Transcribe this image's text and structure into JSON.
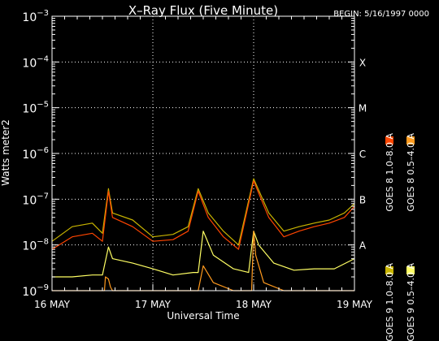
{
  "chart_data": {
    "type": "line",
    "title": "X–Ray Flux (Five Minute)",
    "begin_label": "BEGIN: 5/16/1997 0000",
    "ylabel": "Watts meter2",
    "xlabel": "Universal Time",
    "x_ticks": [
      "16 MAY",
      "17 MAY",
      "18 MAY",
      "19 MAY"
    ],
    "x_range_days": [
      0,
      3
    ],
    "y_scale": "log",
    "ylim": [
      1e-09,
      0.001
    ],
    "y_ticks": [
      {
        "base": "10",
        "exp": "−3",
        "value": 0.001
      },
      {
        "base": "10",
        "exp": "−4",
        "value": 0.0001
      },
      {
        "base": "10",
        "exp": "−5",
        "value": 1e-05
      },
      {
        "base": "10",
        "exp": "−6",
        "value": 1e-06
      },
      {
        "base": "10",
        "exp": "−7",
        "value": 1e-07
      },
      {
        "base": "10",
        "exp": "−8",
        "value": 1e-08
      },
      {
        "base": "10",
        "exp": "−9",
        "value": 1e-09
      }
    ],
    "flare_classes": [
      {
        "label": "X",
        "value": 0.0001
      },
      {
        "label": "M",
        "value": 1e-05
      },
      {
        "label": "C",
        "value": 1e-06
      },
      {
        "label": "B",
        "value": 1e-07
      },
      {
        "label": "A",
        "value": 1e-08
      }
    ],
    "grid": true,
    "legend_placement": "right, vertical text",
    "series": [
      {
        "name": "GOES 8  1.0–8.0 A",
        "color": "#ff4500",
        "x": [
          0,
          0.2,
          0.4,
          0.5,
          0.56,
          0.6,
          0.8,
          1.0,
          1.2,
          1.35,
          1.45,
          1.55,
          1.7,
          1.85,
          2.0,
          2.15,
          2.3,
          2.45,
          2.6,
          2.75,
          2.9,
          3.0
        ],
        "y": [
          8e-09,
          1.5e-08,
          1.8e-08,
          1.2e-08,
          1.5e-07,
          4e-08,
          2.5e-08,
          1.2e-08,
          1.3e-08,
          2e-08,
          1.5e-07,
          4e-08,
          1.5e-08,
          8e-09,
          2.5e-07,
          4e-08,
          1.5e-08,
          2e-08,
          2.5e-08,
          3e-08,
          4e-08,
          7e-08
        ]
      },
      {
        "name": "GOES 8  0.5–4.0 A",
        "color": "#ff9a1e",
        "x": [
          0,
          0.2,
          0.4,
          0.5,
          0.52,
          0.53,
          0.56,
          0.58,
          0.6,
          0.8,
          1.0,
          1.2,
          1.4,
          1.45,
          1.5,
          1.6,
          1.8,
          1.95,
          1.98,
          2.0,
          2.02,
          2.1,
          2.3,
          2.45,
          2.6,
          2.9,
          3.0
        ],
        "y": [
          1e-09,
          1e-09,
          1e-09,
          1e-09,
          1e-09,
          2e-09,
          1.8e-09,
          1.2e-09,
          1e-09,
          1e-09,
          1e-09,
          1e-09,
          1e-09,
          1e-09,
          3.5e-09,
          1.5e-09,
          1e-09,
          1e-09,
          1e-09,
          2e-08,
          6e-09,
          1.5e-09,
          1e-09,
          1e-09,
          1e-09,
          1e-09,
          1e-09
        ]
      },
      {
        "name": "GOES 9  1.0–8.0 A",
        "color": "#c8b400",
        "x": [
          0,
          0.2,
          0.4,
          0.5,
          0.56,
          0.6,
          0.8,
          1.0,
          1.2,
          1.35,
          1.45,
          1.55,
          1.7,
          1.85,
          2.0,
          2.15,
          2.3,
          2.45,
          2.6,
          2.75,
          2.9,
          3.0
        ],
        "y": [
          1.2e-08,
          2.5e-08,
          3e-08,
          1.8e-08,
          1.7e-07,
          5e-08,
          3.5e-08,
          1.5e-08,
          1.7e-08,
          2.5e-08,
          1.7e-07,
          5e-08,
          2e-08,
          1e-08,
          2.8e-07,
          5e-08,
          2e-08,
          2.5e-08,
          3e-08,
          3.5e-08,
          5e-08,
          8e-08
        ]
      },
      {
        "name": "GOES 9  0.5–4.0 A",
        "color": "#ffff64",
        "x": [
          0,
          0.2,
          0.4,
          0.5,
          0.56,
          0.6,
          0.8,
          1.0,
          1.2,
          1.4,
          1.45,
          1.5,
          1.6,
          1.8,
          1.95,
          2.0,
          2.05,
          2.2,
          2.4,
          2.6,
          2.8,
          3.0
        ],
        "y": [
          2e-09,
          2e-09,
          2.2e-09,
          2.2e-09,
          9e-09,
          5e-09,
          4e-09,
          3e-09,
          2.2e-09,
          2.5e-09,
          2.5e-09,
          2e-08,
          6e-09,
          3e-09,
          2.5e-09,
          2e-08,
          1e-08,
          4e-09,
          2.8e-09,
          3e-09,
          3e-09,
          5e-09
        ]
      }
    ]
  }
}
